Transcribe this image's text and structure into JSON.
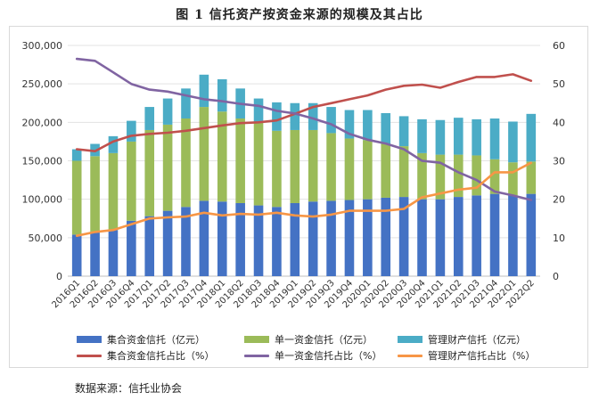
{
  "title": "图 1    信托资产按资金来源的规模及其占比",
  "source": "数据来源：信托业协会",
  "chart_data": {
    "type": "bar",
    "stacked": true,
    "categories": [
      "2016Q1",
      "2016Q2",
      "2016Q3",
      "2016Q4",
      "2017Q1",
      "2017Q2",
      "2017Q3",
      "2017Q4",
      "2018Q1",
      "2018Q2",
      "2018Q3",
      "2018Q4",
      "2019Q1",
      "2019Q2",
      "2019Q3",
      "2019Q4",
      "2020Q1",
      "2020Q2",
      "2020Q3",
      "2020Q4",
      "2021Q1",
      "2021Q2",
      "2021Q3",
      "2021Q4",
      "2022Q1",
      "2022Q2"
    ],
    "y_left": {
      "lim": [
        0,
        300000
      ],
      "ticks": [
        "0",
        "50,000",
        "100,000",
        "150,000",
        "200,000",
        "250,000",
        "300,000"
      ]
    },
    "y_right": {
      "lim": [
        0,
        60
      ],
      "ticks": [
        "0",
        "10",
        "20",
        "30",
        "40",
        "50",
        "60"
      ]
    },
    "bar_series": [
      {
        "name": "集合资金信托（亿元）",
        "color": "#4472c4",
        "values": [
          54000,
          58000,
          60000,
          72000,
          78000,
          85000,
          90000,
          98000,
          97000,
          95000,
          92000,
          90000,
          95000,
          97000,
          98000,
          99000,
          100000,
          102000,
          103000,
          100000,
          100000,
          103000,
          105000,
          107000,
          105000,
          107000
        ]
      },
      {
        "name": "单一资金信托（亿元）",
        "color": "#9bbb59",
        "values": [
          96000,
          98000,
          100000,
          103000,
          112000,
          112000,
          115000,
          122000,
          117000,
          110000,
          108000,
          99000,
          95000,
          93000,
          88000,
          80000,
          77000,
          70000,
          66000,
          60000,
          58000,
          55000,
          52000,
          45000,
          43000,
          42000
        ]
      },
      {
        "name": "管理财产信托（亿元）",
        "color": "#4bacc6",
        "values": [
          15000,
          16000,
          22000,
          27000,
          30000,
          34000,
          39000,
          42000,
          42000,
          39000,
          31000,
          37000,
          35000,
          35000,
          34000,
          37000,
          39000,
          40000,
          39000,
          44000,
          45000,
          48000,
          47000,
          53000,
          53000,
          62000
        ]
      }
    ],
    "line_series": [
      {
        "name": "集合资金信托占比（%）",
        "color": "#c0504d",
        "values": [
          33,
          32.5,
          35,
          36.5,
          37,
          37.3,
          37.8,
          38.5,
          39.2,
          39.8,
          40,
          40.5,
          42.2,
          44,
          45,
          46,
          47,
          48.5,
          49.5,
          49.8,
          49,
          50.5,
          51.8,
          51.8,
          52.5,
          50.8
        ]
      },
      {
        "name": "单一资金信托占比（%）",
        "color": "#8064a2",
        "values": [
          56.5,
          56,
          53,
          50,
          48.5,
          48,
          47,
          46,
          45.5,
          44.8,
          44.3,
          43,
          42.3,
          41,
          39.5,
          37,
          35.5,
          34.5,
          33,
          30,
          29.5,
          27,
          25,
          22,
          21,
          19.8
        ]
      },
      {
        "name": "管理财产信托占比（%）",
        "color": "#f79646",
        "values": [
          10.5,
          11.5,
          12,
          13.5,
          15,
          15.3,
          15.5,
          16.5,
          15.8,
          16.2,
          16,
          16.5,
          15.8,
          15.5,
          16,
          17,
          17,
          17,
          17.5,
          20.5,
          21.5,
          22.5,
          23,
          27,
          27,
          29.5
        ]
      }
    ]
  }
}
